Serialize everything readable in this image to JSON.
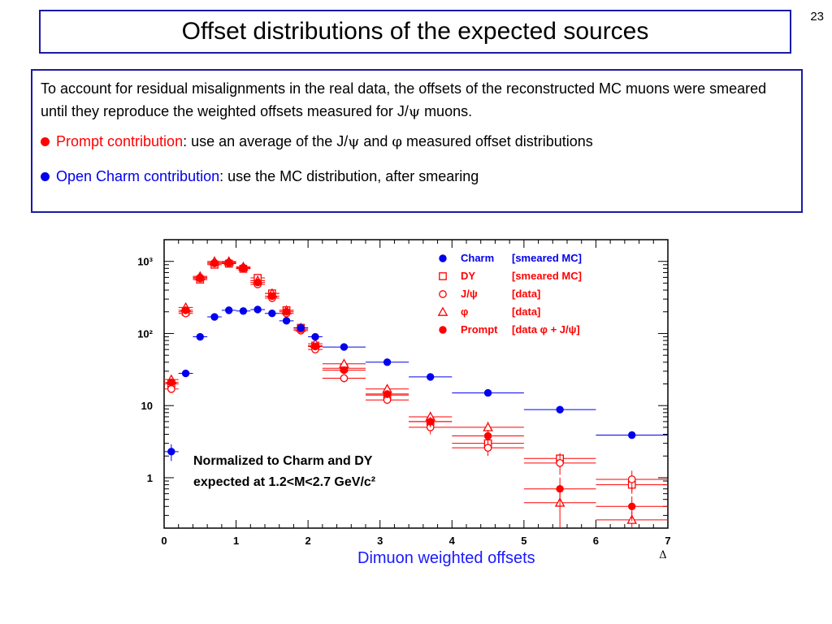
{
  "slide": {
    "title": "Offset distributions of the expected sources",
    "page_number": "23"
  },
  "text": {
    "paragraph_part1": "To account for residual misalignments in the real data, the offsets of the reconstructed MC muons were smeared until they reproduce the weighted offsets measured for J/",
    "paragraph_psi": "ψ",
    "paragraph_part2": " muons.",
    "bullet1_highlight": "Prompt contribution",
    "bullet1_part1": ": use an average of the J/",
    "bullet1_psi": "ψ",
    "bullet1_part2": " and ",
    "bullet1_phi": "φ",
    "bullet1_part3": " measured offset distributions",
    "bullet2_highlight": "Open Charm contribution",
    "bullet2_rest": ": use the MC distribution, after smearing"
  },
  "colors": {
    "title_border": "#1a1aa6",
    "blue": "#0000ee",
    "red": "#ff0000"
  },
  "chart_caption": "Dimuon weighted offsets",
  "chart_data": {
    "type": "scatter",
    "xlabel": "Δ",
    "ylabel": "",
    "xlim": [
      0,
      7
    ],
    "ylim": [
      0.2,
      2000
    ],
    "yscale": "log",
    "x_ticks": [
      "0",
      "1",
      "2",
      "3",
      "4",
      "5",
      "6",
      "7"
    ],
    "y_ticks": [
      {
        "value": 1,
        "label": "1"
      },
      {
        "value": 10,
        "label": "10"
      },
      {
        "value": 100,
        "label": "10²"
      },
      {
        "value": 1000,
        "label": "10³"
      }
    ],
    "annotation": [
      "Normalized to Charm and DY",
      "expected at 1.2<M<2.7 GeV/c²"
    ],
    "legend_position": "top-right",
    "series": [
      {
        "name": "Charm [smeared MC]",
        "marker": "filled-circle",
        "color": "#0000ee",
        "x": [
          0.1,
          0.3,
          0.5,
          0.7,
          0.9,
          1.1,
          1.3,
          1.5,
          1.7,
          1.9,
          2.1,
          2.5,
          3.1,
          3.7,
          4.5,
          5.5,
          6.5
        ],
        "xerr": [
          0.1,
          0.1,
          0.1,
          0.1,
          0.1,
          0.1,
          0.1,
          0.1,
          0.1,
          0.1,
          0.1,
          0.3,
          0.3,
          0.3,
          0.5,
          0.5,
          0.5
        ],
        "y": [
          2.3,
          28,
          90,
          170,
          210,
          205,
          215,
          190,
          150,
          120,
          90,
          65,
          40,
          25,
          15,
          8.8,
          3.9
        ],
        "yerr": [
          0.6,
          2,
          3,
          4,
          4,
          4,
          4,
          4,
          3,
          3,
          3,
          2,
          1.5,
          1,
          0.8,
          0.5,
          0.3
        ]
      },
      {
        "name": "DY [smeared MC]",
        "marker": "open-square",
        "color": "#ff0000",
        "x": [
          0.1,
          0.3,
          0.5,
          0.7,
          0.9,
          1.1,
          1.3,
          1.5,
          1.7,
          1.9,
          2.1,
          2.5,
          3.1,
          3.7,
          4.5,
          5.5,
          6.5
        ],
        "xerr": [
          0.1,
          0.1,
          0.1,
          0.1,
          0.1,
          0.1,
          0.1,
          0.1,
          0.1,
          0.1,
          0.1,
          0.3,
          0.3,
          0.3,
          0.5,
          0.5,
          0.5
        ],
        "y": [
          20,
          200,
          560,
          900,
          930,
          790,
          590,
          360,
          210,
          120,
          68,
          33,
          14,
          6,
          3,
          1.85,
          0.8
        ],
        "yerr": [
          2,
          8,
          15,
          20,
          20,
          20,
          15,
          12,
          8,
          6,
          4,
          3,
          1.5,
          0.8,
          0.5,
          0.35,
          0.2
        ]
      },
      {
        "name": "J/ψ [data]",
        "marker": "open-circle",
        "color": "#ff0000",
        "x": [
          0.1,
          0.3,
          0.5,
          0.7,
          0.9,
          1.1,
          1.3,
          1.5,
          1.7,
          1.9,
          2.1,
          2.5,
          3.1,
          3.7,
          4.5,
          5.5,
          6.5
        ],
        "xerr": [
          0.1,
          0.1,
          0.1,
          0.1,
          0.1,
          0.1,
          0.1,
          0.1,
          0.1,
          0.1,
          0.1,
          0.3,
          0.3,
          0.3,
          0.5,
          0.5,
          0.5
        ],
        "y": [
          17,
          190,
          580,
          940,
          950,
          800,
          480,
          310,
          190,
          110,
          60,
          24,
          12,
          5,
          2.6,
          1.6,
          0.95
        ],
        "yerr": [
          2,
          8,
          15,
          20,
          20,
          20,
          15,
          12,
          8,
          6,
          4,
          3,
          1.5,
          1,
          0.6,
          0.5,
          0.3
        ]
      },
      {
        "name": "φ [data]",
        "marker": "open-triangle",
        "color": "#ff0000",
        "x": [
          0.1,
          0.3,
          0.5,
          0.7,
          0.9,
          1.1,
          1.3,
          1.5,
          1.7,
          1.9,
          2.1,
          2.5,
          3.1,
          3.7,
          4.5,
          5.5,
          6.5
        ],
        "xerr": [
          0.1,
          0.1,
          0.1,
          0.1,
          0.1,
          0.1,
          0.1,
          0.1,
          0.1,
          0.1,
          0.1,
          0.3,
          0.3,
          0.3,
          0.5,
          0.5,
          0.5
        ],
        "y": [
          23,
          230,
          620,
          1000,
          1000,
          840,
          540,
          360,
          210,
          120,
          72,
          38,
          17,
          7,
          5,
          0.45,
          0.26
        ],
        "yerr": [
          2,
          8,
          15,
          20,
          20,
          20,
          15,
          12,
          8,
          6,
          4,
          4,
          2,
          1.2,
          1,
          0.25,
          0.08
        ]
      },
      {
        "name": "Prompt [data φ + J/ψ]",
        "marker": "filled-circle",
        "color": "#ff0000",
        "x": [
          0.1,
          0.3,
          0.5,
          0.7,
          0.9,
          1.1,
          1.3,
          1.5,
          1.7,
          1.9,
          2.1,
          2.5,
          3.1,
          3.7,
          4.5,
          5.5,
          6.5
        ],
        "xerr": [
          0.1,
          0.1,
          0.1,
          0.1,
          0.1,
          0.1,
          0.1,
          0.1,
          0.1,
          0.1,
          0.1,
          0.3,
          0.3,
          0.3,
          0.5,
          0.5,
          0.5
        ],
        "y": [
          21,
          210,
          600,
          960,
          970,
          820,
          510,
          330,
          200,
          115,
          66,
          31,
          14.5,
          6,
          3.8,
          0.7,
          0.4
        ],
        "yerr": [
          2,
          8,
          15,
          20,
          20,
          20,
          15,
          12,
          8,
          6,
          4,
          3,
          1.8,
          1,
          0.8,
          0.3,
          0.15
        ]
      }
    ],
    "legend": [
      {
        "marker": "filled-circle",
        "label": "Charm",
        "source": "[smeared MC]"
      },
      {
        "marker": "open-square",
        "label": "DY",
        "source": "[smeared MC]"
      },
      {
        "marker": "open-circle",
        "label": "J/ψ",
        "source": "[data]"
      },
      {
        "marker": "open-triangle",
        "label": "φ",
        "source": "[data]"
      },
      {
        "marker": "filled-circle-red",
        "label": "Prompt",
        "source": "[data φ + J/ψ]"
      }
    ]
  }
}
